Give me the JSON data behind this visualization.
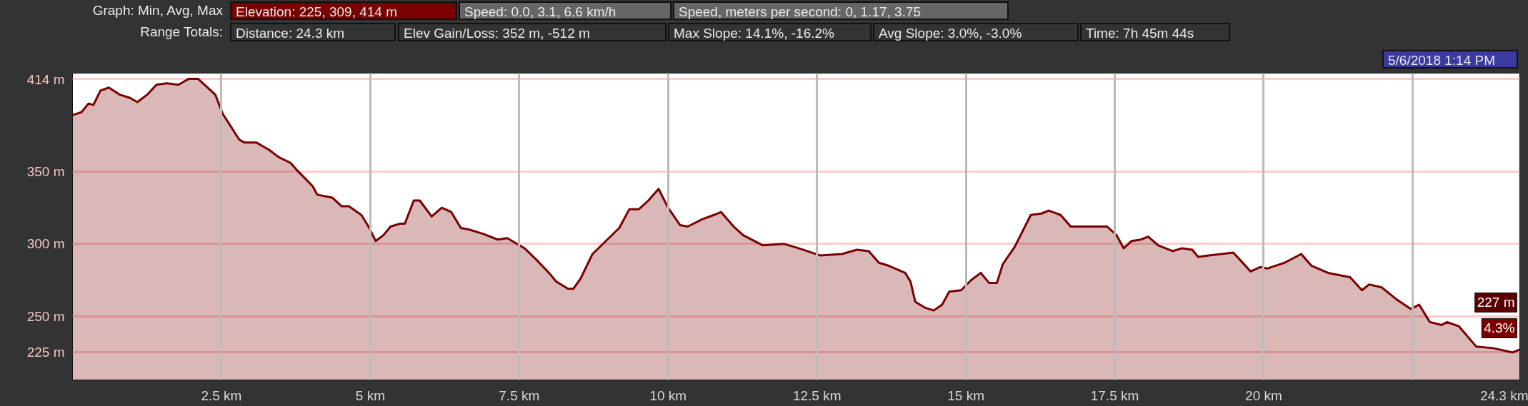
{
  "chart_data": {
    "type": "area",
    "annotations": [
      "Graph: Min, Avg, Max",
      "Elevation: 225, 309, 414 m",
      "Speed: 0.0, 3.1, 6.6 km/h",
      "Speed, meters per second: 0, 1.17, 3.75",
      "Range Totals:",
      "Distance: 24.3 km",
      "Elev Gain/Loss: 352 m, -512 m",
      "Max Slope: 14.1%, -16.2%",
      "Avg Slope: 3.0%, -3.0%",
      "Time: 7h 45m 44s",
      "5/6/2018 1:14 PM",
      {
        "text": "227 m",
        "x": 24.3,
        "y": 227
      },
      "4.3%"
    ],
    "x": [
      0,
      0.15,
      0.27,
      0.35,
      0.47,
      0.61,
      0.8,
      0.96,
      1.09,
      1.25,
      1.41,
      1.58,
      1.78,
      1.95,
      2.11,
      2.27,
      2.4,
      2.52,
      2.8,
      2.89,
      3.09,
      3.3,
      3.46,
      3.66,
      3.79,
      4.03,
      4.11,
      4.36,
      4.52,
      4.64,
      4.85,
      4.97,
      5.09,
      5.22,
      5.34,
      5.5,
      5.58,
      5.73,
      5.83,
      6.03,
      6.2,
      6.36,
      6.52,
      6.65,
      6.89,
      7.14,
      7.3,
      7.59,
      7.79,
      8.0,
      8.12,
      8.32,
      8.41,
      8.53,
      8.73,
      8.98,
      9.18,
      9.35,
      9.51,
      9.67,
      9.84,
      10.0,
      10.2,
      10.33,
      10.57,
      10.77,
      10.89,
      11.1,
      11.26,
      11.59,
      11.95,
      12.19,
      12.56,
      12.92,
      13.17,
      13.37,
      13.54,
      13.7,
      13.98,
      14.07,
      14.15,
      14.31,
      14.46,
      14.6,
      14.72,
      14.92,
      15.09,
      15.25,
      15.39,
      15.52,
      15.62,
      15.82,
      16.09,
      16.27,
      16.39,
      16.59,
      16.76,
      16.92,
      17.37,
      17.53,
      17.65,
      17.78,
      17.94,
      18.06,
      18.23,
      18.47,
      18.63,
      18.8,
      18.9,
      19.08,
      19.29,
      19.49,
      19.78,
      19.94,
      20.06,
      20.35,
      20.63,
      20.8,
      21.08,
      21.45,
      21.65,
      21.77,
      21.98,
      22.22,
      22.47,
      22.61,
      22.79,
      22.99,
      23.08,
      23.28,
      23.57,
      23.85,
      24.18,
      24.3
    ],
    "series": [
      {
        "color": "#7a0000",
        "values": [
          389,
          391,
          397,
          396,
          406,
          408,
          403,
          401,
          398,
          403,
          410,
          411,
          410,
          414,
          414,
          408,
          403,
          390,
          372,
          370,
          370,
          365,
          360,
          356,
          350,
          340,
          334,
          332,
          326,
          326,
          320,
          312,
          302,
          306,
          312,
          314,
          314,
          330,
          330,
          319,
          325,
          322,
          311,
          310,
          307,
          303,
          304,
          297,
          289,
          280,
          274,
          269,
          269,
          276,
          293,
          303,
          311,
          324,
          324,
          330,
          338,
          325,
          313,
          312,
          317,
          320,
          322,
          312,
          306,
          299,
          300,
          297,
          292,
          293,
          296,
          295,
          287,
          285,
          280,
          274,
          260,
          256,
          254,
          258,
          267,
          268,
          275,
          280,
          273,
          273,
          286,
          298,
          320,
          321,
          323,
          320,
          312,
          312,
          312,
          306,
          297,
          302,
          303,
          305,
          299,
          295,
          297,
          296,
          291,
          292,
          293,
          294,
          281,
          284,
          283,
          287,
          293,
          285,
          280,
          277,
          268,
          272,
          270,
          262,
          255,
          258,
          246,
          244,
          246,
          243,
          229,
          228,
          225,
          227
        ]
      }
    ],
    "xlim": [
      0,
      24.3
    ],
    "ylim": [
      206,
      418
    ],
    "xticks": [
      {
        "value": 2.5,
        "label": "2.5 km"
      },
      {
        "value": 5,
        "label": "5 km"
      },
      {
        "value": 7.5,
        "label": "7.5 km"
      },
      {
        "value": 10,
        "label": "10 km"
      },
      {
        "value": 12.5,
        "label": "12.5 km"
      },
      {
        "value": 15,
        "label": "15 km"
      },
      {
        "value": 17.5,
        "label": "17.5 km"
      },
      {
        "value": 20,
        "label": "20 km"
      },
      {
        "value": 22.5,
        "label": null
      },
      {
        "value": 24.3,
        "label": "24.3 km"
      }
    ],
    "yticks": [
      {
        "value": 225,
        "label": "225 m"
      },
      {
        "value": 250,
        "label": "250 m"
      },
      {
        "value": 300,
        "label": "300 m"
      },
      {
        "value": 350,
        "label": "350 m"
      },
      {
        "value": 414,
        "label": "414 m"
      }
    ],
    "grid": true
  }
}
